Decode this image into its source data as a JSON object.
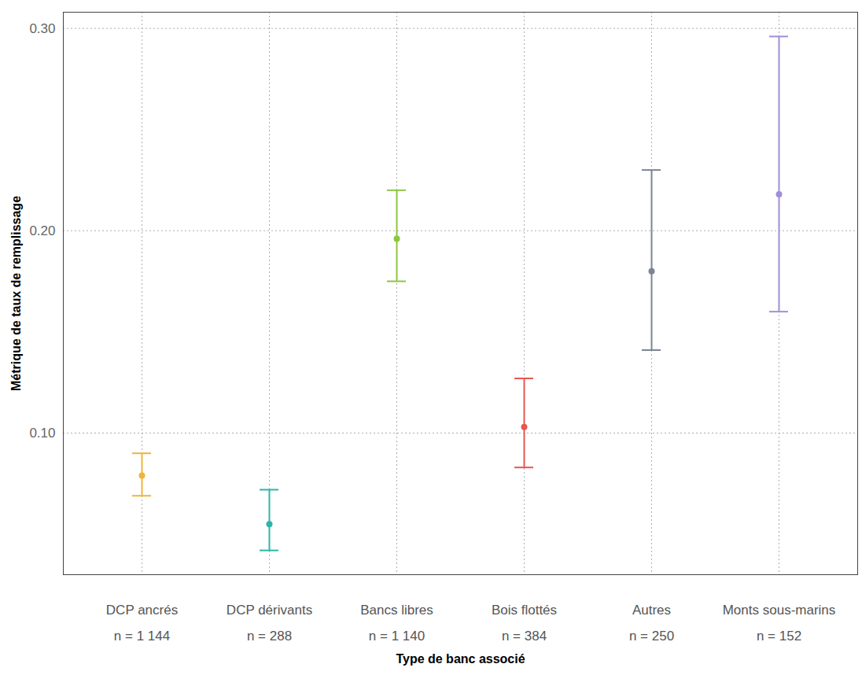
{
  "chart_data": {
    "type": "errorbar",
    "x_label": "Type de banc associé",
    "y_label": "Métrique de taux de remplissage",
    "categories": [
      "DCP ancrés",
      "DCP dérivants",
      "Bancs libres",
      "Bois flottés",
      "Autres",
      "Monts sous-marins"
    ],
    "n_labels": [
      "n = 1 144",
      "n = 288",
      "n = 1 140",
      "n = 384",
      "n = 250",
      "n = 152"
    ],
    "values": [
      0.079,
      0.055,
      0.196,
      0.103,
      0.18,
      0.218
    ],
    "error_low": [
      0.069,
      0.042,
      0.175,
      0.083,
      0.141,
      0.16
    ],
    "error_high": [
      0.09,
      0.072,
      0.22,
      0.127,
      0.23,
      0.296
    ],
    "colors": [
      "#f0b43c",
      "#2bb5a8",
      "#8dc63f",
      "#e8564f",
      "#7a8595",
      "#a08fd6"
    ],
    "ylim": [
      0.03,
      0.308
    ],
    "yticks": [
      0.1,
      0.2,
      0.3
    ],
    "grid": true
  }
}
